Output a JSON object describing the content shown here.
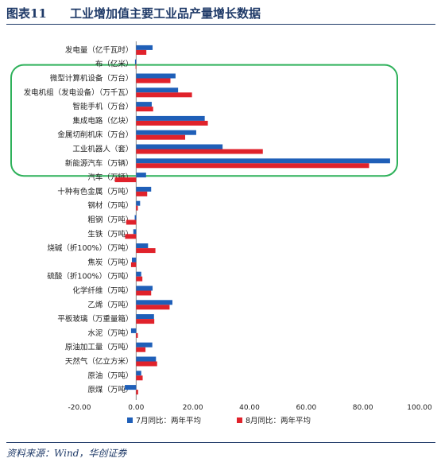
{
  "header": {
    "figure_no": "图表11",
    "title": "工业增加值主要工业品产量增长数据"
  },
  "source": "资料来源：Wind，华创证券",
  "colors": {
    "series_jul": "#1f5fb8",
    "series_aug": "#e0222b",
    "highlight": "#2eb15a",
    "axis": "#888888"
  },
  "chart_data": {
    "type": "bar",
    "orientation": "horizontal",
    "categories": [
      "发电量（亿千瓦时）",
      "布（亿米）",
      "微型计算机设备（万台）",
      "发电机组（发电设备）（万千瓦）",
      "智能手机（万台）",
      "集成电路（亿块）",
      "金属切削机床（万台）",
      "工业机器人（套）",
      "新能源汽车（万辆）",
      "汽车（万辆）",
      "十种有色金属（万吨）",
      "钢材（万吨）",
      "粗钢（万吨）",
      "生铁（万吨）",
      "烧碱（折100%）（万吨）",
      "焦炭（万吨）",
      "硫酸（折100%）（万吨）",
      "化学纤维（万吨）",
      "乙烯（万吨）",
      "平板玻璃（万重量箱）",
      "水泥（万吨）",
      "原油加工量（万吨）",
      "天然气（亿立方米）",
      "原油（万吨）",
      "原煤（万吨）"
    ],
    "series": [
      {
        "name": "7月同比：两年平均",
        "values": [
          5.8,
          -0.4,
          13.9,
          14.8,
          5.5,
          24.2,
          21.2,
          30.5,
          89.6,
          3.5,
          5.3,
          1.4,
          -0.5,
          -1.0,
          4.2,
          -1.5,
          1.8,
          5.8,
          12.8,
          6.3,
          -1.8,
          5.7,
          7.0,
          1.8,
          -4.0
        ]
      },
      {
        "name": "8月同比：两年平均",
        "values": [
          3.6,
          -0.2,
          12.1,
          19.7,
          6.0,
          25.3,
          17.3,
          44.7,
          82.2,
          -7.5,
          3.9,
          0.6,
          -3.5,
          -3.9,
          6.8,
          -1.8,
          2.2,
          5.3,
          11.8,
          6.4,
          0.6,
          3.3,
          7.4,
          2.3,
          0.7
        ]
      }
    ],
    "x_ticks": [
      "-20.00",
      "0.00",
      "20.00",
      "40.00",
      "60.00",
      "80.00",
      "100.00"
    ],
    "xlim": [
      -20,
      100
    ],
    "grid": false,
    "legend_position": "bottom",
    "highlighted_group": "微型计算机设备 to 新能源汽车"
  }
}
